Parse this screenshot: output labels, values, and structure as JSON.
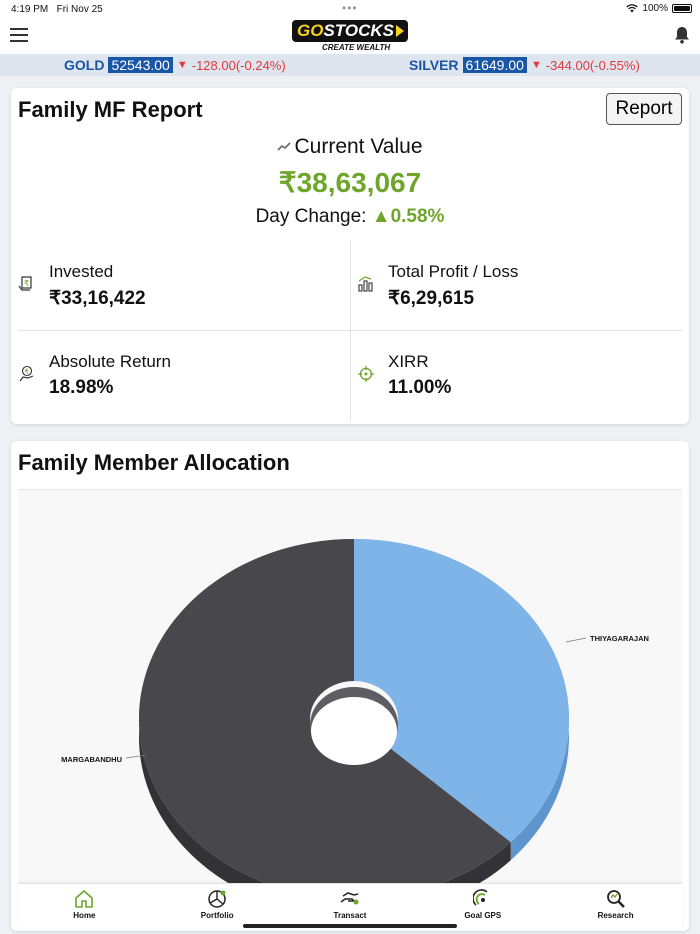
{
  "status_bar": {
    "time": "4:19 PM",
    "date": "Fri Nov 25",
    "battery": "100%"
  },
  "header": {
    "logo_go": "GO",
    "logo_stocks": "STOCKS",
    "tagline": "CREATE WEALTH"
  },
  "ticker": [
    {
      "name": "GOLD",
      "price": "52543.00",
      "change": "-128.00(-0.24%)"
    },
    {
      "name": "SILVER",
      "price": "61649.00",
      "change": "-344.00(-0.55%)"
    }
  ],
  "report": {
    "title": "Family MF Report",
    "report_button": "Report",
    "current_value_label": "Current Value",
    "current_value": "₹38,63,067",
    "day_change_label": "Day Change:",
    "day_change_value": "0.58%",
    "stats": [
      {
        "label": "Invested",
        "value": "₹33,16,422",
        "icon": "invested-icon"
      },
      {
        "label": "Total Profit / Loss",
        "value": "₹6,29,615",
        "icon": "bar-chart-icon"
      },
      {
        "label": "Absolute Return",
        "value": "18.98%",
        "icon": "money-hand-icon"
      },
      {
        "label": "XIRR",
        "value": "11.00%",
        "icon": "target-icon"
      }
    ]
  },
  "allocation": {
    "title": "Family Member Allocation",
    "colors": {
      "light": "#7fb4e8",
      "light_side": "#5f95cf",
      "dark": "#48474c",
      "dark_side": "#333236"
    },
    "chart_data": {
      "type": "pie",
      "title": "Family Member Allocation",
      "labels": [
        "THIYAGARAJAN",
        "MARGABANDHU"
      ],
      "values": [
        37,
        63
      ],
      "style": "3d-donut"
    }
  },
  "bottom_nav": [
    {
      "label": "Home",
      "icon": "home-icon"
    },
    {
      "label": "Portfolio",
      "icon": "portfolio-icon"
    },
    {
      "label": "Transact",
      "icon": "transact-icon"
    },
    {
      "label": "Goal GPS",
      "icon": "goal-gps-icon"
    },
    {
      "label": "Research",
      "icon": "research-icon"
    }
  ]
}
